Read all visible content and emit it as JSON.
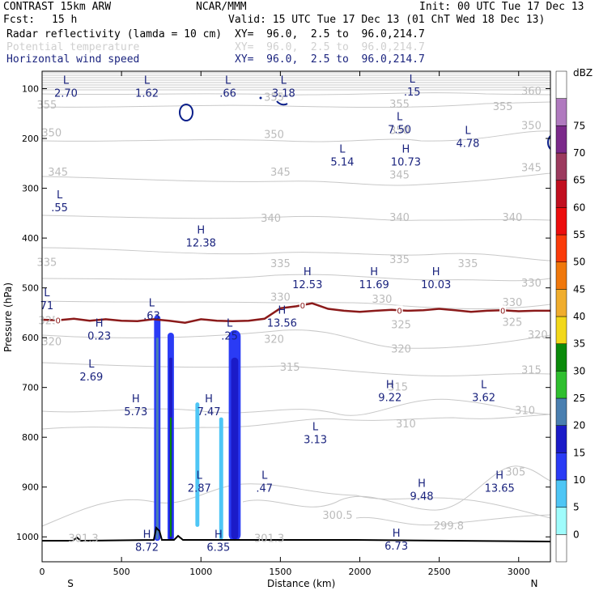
{
  "header": {
    "model": "CONTRAST 15km ARW",
    "org": "NCAR/MMM",
    "init": "Init: 00 UTC Tue 17 Dec 13",
    "fcst_label": "Fcst:",
    "fcst_value": "15 h",
    "valid": "Valid: 15 UTC Tue 17 Dec 13 (01 ChT Wed 18 Dec 13)"
  },
  "fields": [
    {
      "name": "Radar reflectivity (lamda = 10 cm)",
      "xy": "XY=  96.0,  2.5 to  96.0,214.7",
      "color": "#000000"
    },
    {
      "name": "Potential temperature",
      "xy": "XY=  96.0,  2.5 to  96.0,214.7",
      "color": "#cfcfcf"
    },
    {
      "name": "Horizontal wind speed",
      "xy": "XY=  96.0,  2.5 to  96.0,214.7",
      "color": "#1a237e"
    }
  ],
  "chart_data": {
    "type": "heatmap",
    "description_kind": "vertical cross-section",
    "xlabel": "Distance (km)",
    "ylabel": "Pressure (hPa)",
    "xlim": [
      0,
      3200
    ],
    "ylim": [
      1050,
      65
    ],
    "x_ticks": [
      0,
      500,
      1000,
      1500,
      2000,
      2500,
      3000
    ],
    "y_ticks": [
      100,
      200,
      300,
      400,
      500,
      600,
      700,
      800,
      900,
      1000
    ],
    "x_end_labels": {
      "left": "S",
      "right": "N"
    },
    "colorbar": {
      "unit": "dBZ",
      "levels": [
        "0",
        "5",
        "10",
        "15",
        "20",
        "25",
        "30",
        "35",
        "40",
        "45",
        "50",
        "55",
        "60",
        "65",
        "70",
        "75"
      ],
      "colors": [
        "#ffffff",
        "#9ffcfc",
        "#4ec6f5",
        "#2a3bf5",
        "#1b1bc8",
        "#4a7fb0",
        "#2fbf2f",
        "#0a8a0a",
        "#f2d81a",
        "#f0ad2d",
        "#f0780c",
        "#fa3b0a",
        "#ec0d0d",
        "#c10f1f",
        "#9c3a5e",
        "#7b2a8a",
        "#b07abf",
        "#ffffff"
      ]
    },
    "theta_labels": [
      {
        "text": "360",
        "x": 3080,
        "p": 112
      },
      {
        "text": "355",
        "x": 30,
        "p": 140
      },
      {
        "text": "355",
        "x": 1460,
        "p": 124
      },
      {
        "text": "355",
        "x": 2250,
        "p": 138
      },
      {
        "text": "355",
        "x": 2900,
        "p": 143
      },
      {
        "text": "350",
        "x": 60,
        "p": 196
      },
      {
        "text": "350",
        "x": 1460,
        "p": 199
      },
      {
        "text": "350",
        "x": 2250,
        "p": 191
      },
      {
        "text": "350",
        "x": 3080,
        "p": 181
      },
      {
        "text": "345",
        "x": 100,
        "p": 275
      },
      {
        "text": "345",
        "x": 1500,
        "p": 275
      },
      {
        "text": "345",
        "x": 2250,
        "p": 280
      },
      {
        "text": "345",
        "x": 3080,
        "p": 266
      },
      {
        "text": "340",
        "x": 1440,
        "p": 367
      },
      {
        "text": "340",
        "x": 2250,
        "p": 366
      },
      {
        "text": "340",
        "x": 2960,
        "p": 366
      },
      {
        "text": "335",
        "x": 30,
        "p": 456
      },
      {
        "text": "335",
        "x": 1500,
        "p": 458
      },
      {
        "text": "335",
        "x": 2250,
        "p": 450
      },
      {
        "text": "335",
        "x": 2680,
        "p": 458
      },
      {
        "text": "330",
        "x": 1500,
        "p": 526
      },
      {
        "text": "330",
        "x": 2140,
        "p": 530
      },
      {
        "text": "330",
        "x": 2960,
        "p": 536
      },
      {
        "text": "330",
        "x": 3080,
        "p": 497
      },
      {
        "text": "325",
        "x": 40,
        "p": 573
      },
      {
        "text": "325",
        "x": 2260,
        "p": 581
      },
      {
        "text": "325",
        "x": 2960,
        "p": 576
      },
      {
        "text": "320",
        "x": 60,
        "p": 615
      },
      {
        "text": "320",
        "x": 1460,
        "p": 610
      },
      {
        "text": "320",
        "x": 2260,
        "p": 630
      },
      {
        "text": "320",
        "x": 3120,
        "p": 601
      },
      {
        "text": "315",
        "x": 1560,
        "p": 666
      },
      {
        "text": "315",
        "x": 2240,
        "p": 706
      },
      {
        "text": "315",
        "x": 3080,
        "p": 672
      },
      {
        "text": "310",
        "x": 2290,
        "p": 780
      },
      {
        "text": "310",
        "x": 3040,
        "p": 753
      },
      {
        "text": "305",
        "x": 2980,
        "p": 877
      },
      {
        "text": "300.5",
        "x": 1860,
        "p": 964
      },
      {
        "text": "301.3",
        "x": 260,
        "p": 1010
      },
      {
        "text": "301.3",
        "x": 1430,
        "p": 1010
      },
      {
        "text": "299.8",
        "x": 2560,
        "p": 985
      }
    ],
    "wind_extrema": [
      {
        "type": "L",
        "value": "2.70",
        "x": 150,
        "p": 90
      },
      {
        "type": "L",
        "value": "1.62",
        "x": 660,
        "p": 90
      },
      {
        "type": "L",
        "value": ".66",
        "x": 1170,
        "p": 90
      },
      {
        "type": "L",
        "value": "3.18",
        "x": 1520,
        "p": 90
      },
      {
        "type": "L",
        "value": ".15",
        "x": 2330,
        "p": 88
      },
      {
        "type": "L",
        "value": "7.50",
        "x": 2250,
        "p": 163
      },
      {
        "type": "L",
        "value": "4.78",
        "x": 2680,
        "p": 191
      },
      {
        "type": "L",
        "value": "5.14",
        "x": 1890,
        "p": 228
      },
      {
        "type": "H",
        "value": "10.73",
        "x": 2290,
        "p": 228
      },
      {
        "type": "L",
        "value": ".55",
        "x": 110,
        "p": 320
      },
      {
        "type": "H",
        "value": "12.38",
        "x": 1000,
        "p": 391
      },
      {
        "type": "H",
        "value": "12.53",
        "x": 1670,
        "p": 475
      },
      {
        "type": "H",
        "value": "11.69",
        "x": 2090,
        "p": 475
      },
      {
        "type": "H",
        "value": "10.03",
        "x": 2480,
        "p": 475
      },
      {
        "type": "L",
        "value": "71",
        "x": 30,
        "p": 517
      },
      {
        "type": "L",
        "value": ".63",
        "x": 690,
        "p": 537
      },
      {
        "type": "H",
        "value": "13.56",
        "x": 1510,
        "p": 552
      },
      {
        "type": "H",
        "value": "0.23",
        "x": 360,
        "p": 578
      },
      {
        "type": "L",
        "value": ".25",
        "x": 1180,
        "p": 578
      },
      {
        "type": "L",
        "value": "2.69",
        "x": 310,
        "p": 660
      },
      {
        "type": "H",
        "value": "9.22",
        "x": 2190,
        "p": 701
      },
      {
        "type": "L",
        "value": "3.62",
        "x": 2780,
        "p": 701
      },
      {
        "type": "H",
        "value": "5.73",
        "x": 590,
        "p": 730
      },
      {
        "type": "H",
        "value": "7.47",
        "x": 1050,
        "p": 730
      },
      {
        "type": "L",
        "value": "3.13",
        "x": 1720,
        "p": 786
      },
      {
        "type": "L",
        "value": "2.87",
        "x": 990,
        "p": 883
      },
      {
        "type": "L",
        "value": ".47",
        "x": 1400,
        "p": 883
      },
      {
        "type": "H",
        "value": "9.48",
        "x": 2390,
        "p": 900
      },
      {
        "type": "H",
        "value": "13.65",
        "x": 2880,
        "p": 883
      },
      {
        "type": "H",
        "value": "8.72",
        "x": 660,
        "p": 1002
      },
      {
        "type": "H",
        "value": "6.35",
        "x": 1110,
        "p": 1002
      },
      {
        "type": "H",
        "value": "6.73",
        "x": 2230,
        "p": 1000
      }
    ],
    "zero_marker_label": "0",
    "zero_marker_x": [
      100,
      1640,
      2250,
      2900
    ],
    "zero_contour_km": [
      0,
      100,
      200,
      300,
      400,
      500,
      600,
      700,
      800,
      900,
      1000,
      1100,
      1200,
      1300,
      1400,
      1500,
      1600,
      1700,
      1800,
      1900,
      2000,
      2100,
      2200,
      2300,
      2400,
      2500,
      2600,
      2700,
      2800,
      2900,
      3000,
      3100,
      3200
    ],
    "zero_contour_p": [
      564,
      565,
      562,
      566,
      563,
      566,
      567,
      563,
      566,
      570,
      563,
      566,
      567,
      566,
      562,
      541,
      537,
      531,
      542,
      546,
      548,
      546,
      544,
      546,
      545,
      542,
      545,
      548,
      546,
      545,
      547,
      546,
      546
    ],
    "reflectivity_cores": [
      {
        "x0": 705,
        "x1": 745,
        "p0": 555,
        "p1": 1008,
        "dbz": 10
      },
      {
        "x0": 718,
        "x1": 733,
        "p0": 600,
        "p1": 1005,
        "dbz": 20
      },
      {
        "x0": 790,
        "x1": 830,
        "p0": 590,
        "p1": 1008,
        "dbz": 10
      },
      {
        "x0": 800,
        "x1": 820,
        "p0": 640,
        "p1": 1005,
        "dbz": 15
      },
      {
        "x0": 805,
        "x1": 815,
        "p0": 760,
        "p1": 1000,
        "dbz": 30
      },
      {
        "x0": 965,
        "x1": 990,
        "p0": 730,
        "p1": 980,
        "dbz": 5
      },
      {
        "x0": 1115,
        "x1": 1140,
        "p0": 760,
        "p1": 1005,
        "dbz": 5
      },
      {
        "x0": 1175,
        "x1": 1250,
        "p0": 585,
        "p1": 1008,
        "dbz": 10
      },
      {
        "x0": 1190,
        "x1": 1235,
        "p0": 640,
        "p1": 1005,
        "dbz": 15
      }
    ]
  }
}
